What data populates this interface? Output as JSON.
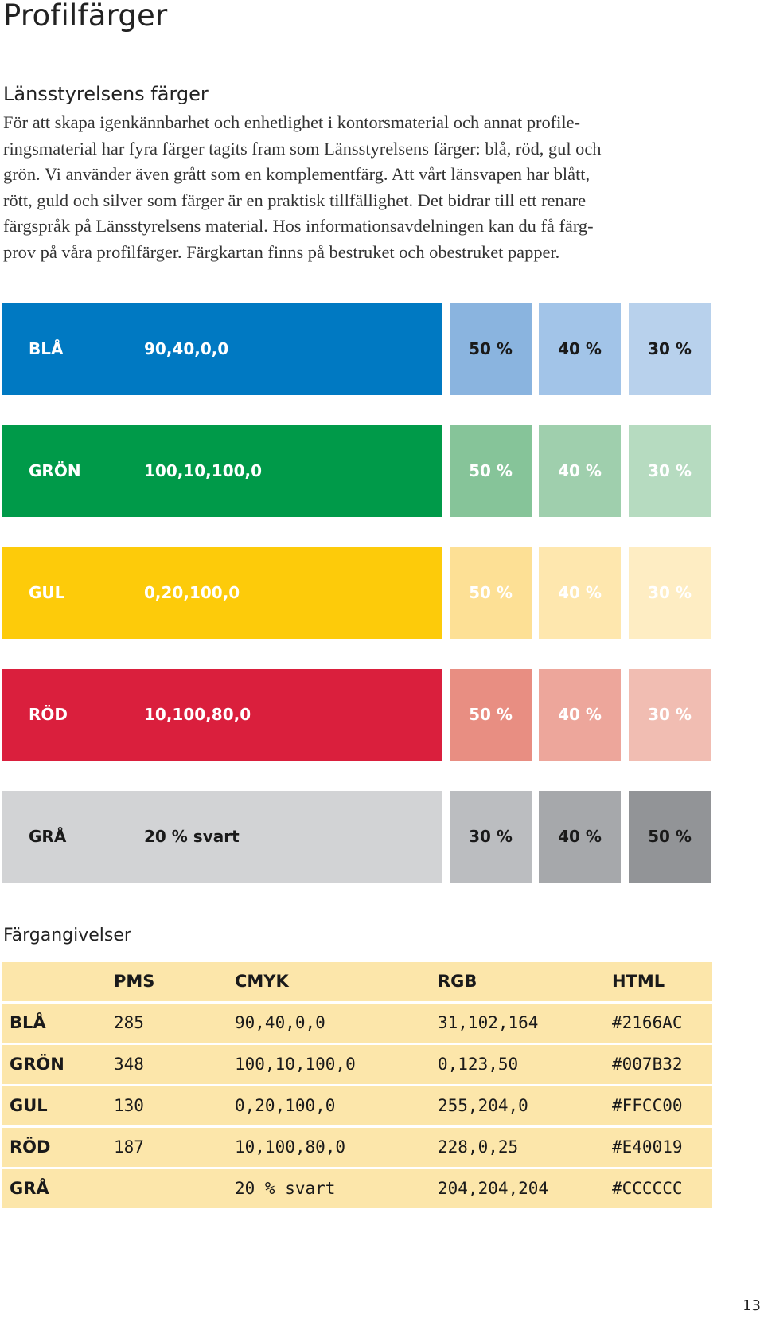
{
  "page_title": "Profilfärger",
  "section_heading": "Länsstyrelsens färger",
  "intro_lines": [
    "För att skapa igenkännbarhet och enhetlighet i kontorsmaterial och annat profile-",
    "ringsmaterial har fyra färger tagits fram som Länsstyrelsens färger: blå, röd, gul och",
    "grön. Vi använder även grått som en komplementfärg. Att vårt länsvapen har blått,",
    "rött, guld och silver som färger är en praktisk tillfällighet. Det bidrar till ett renare",
    "färgspråk på Länsstyrelsens material. Hos informationsavdelningen kan du få färg-",
    "prov på våra profilfärger. Färgkartan finns på bestruket och obestruket papper."
  ],
  "swatches": [
    {
      "name": "BLÅ",
      "cmyk": "90,40,0,0",
      "main_color": "#0079C2",
      "text": "light",
      "tints": [
        {
          "label": "50 %",
          "color": "#8AB4DF",
          "text": "dark"
        },
        {
          "label": "40 %",
          "color": "#A2C4E8",
          "text": "dark"
        },
        {
          "label": "30 %",
          "color": "#B8D1EC",
          "text": "dark"
        }
      ]
    },
    {
      "name": "GRÖN",
      "cmyk": "100,10,100,0",
      "main_color": "#009A49",
      "text": "light",
      "tints": [
        {
          "label": "50 %",
          "color": "#86C499",
          "text": "light"
        },
        {
          "label": "40 %",
          "color": "#9FCFAD",
          "text": "light"
        },
        {
          "label": "30 %",
          "color": "#B6DBC0",
          "text": "light"
        }
      ]
    },
    {
      "name": "GUL",
      "cmyk": "0,20,100,0",
      "main_color": "#FDCB0A",
      "text": "light",
      "tints": [
        {
          "label": "50 %",
          "color": "#FDE095",
          "text": "light"
        },
        {
          "label": "40 %",
          "color": "#FEE7AE",
          "text": "light"
        },
        {
          "label": "30 %",
          "color": "#FEEDC3",
          "text": "light"
        }
      ]
    },
    {
      "name": "RÖD",
      "cmyk": "10,100,80,0",
      "main_color": "#DA1F3D",
      "text": "light",
      "tints": [
        {
          "label": "50 %",
          "color": "#E88E82",
          "text": "light"
        },
        {
          "label": "40 %",
          "color": "#EDA69B",
          "text": "light"
        },
        {
          "label": "30 %",
          "color": "#F1BDB2",
          "text": "light"
        }
      ]
    },
    {
      "name": "GRÅ",
      "cmyk": "20 % svart",
      "main_color": "#D2D3D5",
      "text": "dark",
      "tints": [
        {
          "label": "30 %",
          "color": "#BBBDC0",
          "text": "dark"
        },
        {
          "label": "40 %",
          "color": "#A6A8AB",
          "text": "dark"
        },
        {
          "label": "50 %",
          "color": "#929497",
          "text": "dark"
        }
      ]
    }
  ],
  "table_heading": "Färgangivelser",
  "spec_table": {
    "columns": [
      "",
      "PMS",
      "CMYK",
      "RGB",
      "HTML"
    ],
    "rows": [
      [
        "BLÅ",
        "285",
        "90,40,0,0",
        "31,102,164",
        "#2166AC"
      ],
      [
        "GRÖN",
        "348",
        "100,10,100,0",
        "0,123,50",
        "#007B32"
      ],
      [
        "GUL",
        "130",
        "0,20,100,0",
        "255,204,0",
        "#FFCC00"
      ],
      [
        "RÖD",
        "187",
        "10,100,80,0",
        "228,0,25",
        "#E40019"
      ],
      [
        "GRÅ",
        "",
        "20 % svart",
        "204,204,204",
        "#CCCCCC"
      ]
    ]
  },
  "page_number": "13"
}
